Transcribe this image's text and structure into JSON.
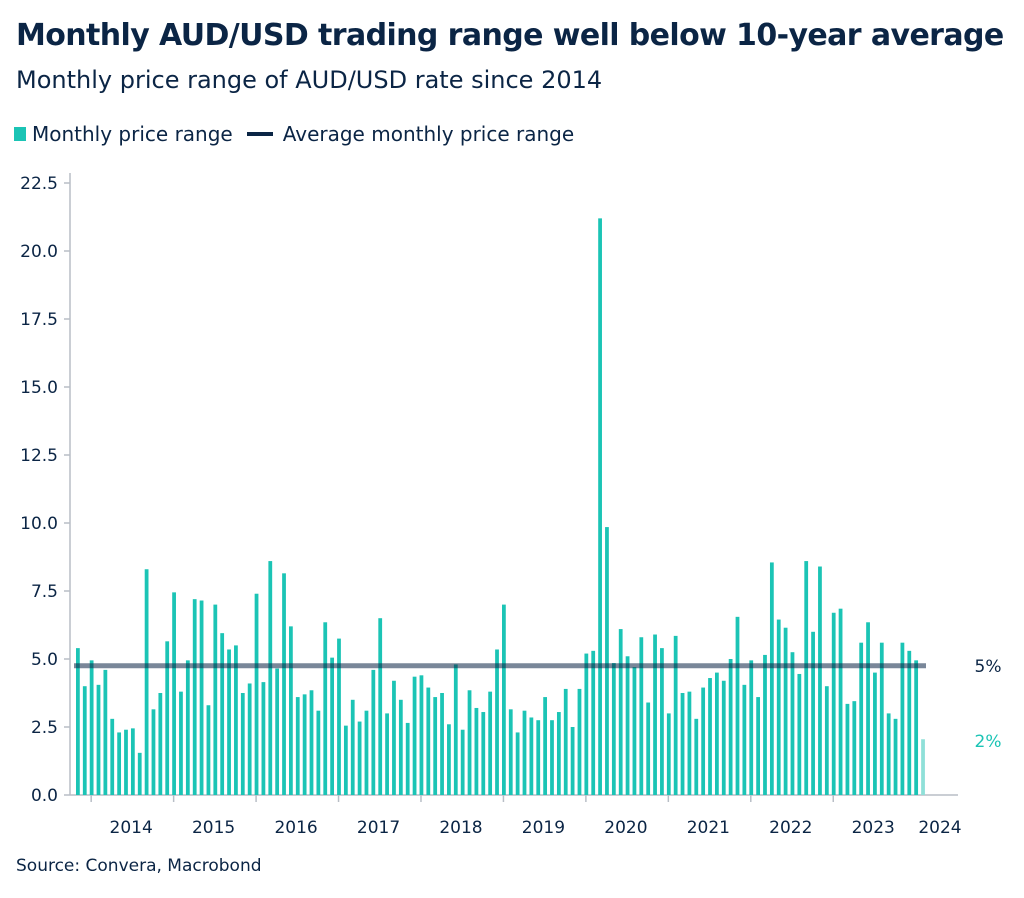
{
  "title": "Monthly AUD/USD trading range well below 10-year average",
  "subtitle": "Monthly price range of AUD/USD rate since 2014",
  "source": "Source: Convera, Macrobond",
  "legend": {
    "series_label": "Monthly price range",
    "average_label": "Average monthly price range"
  },
  "colors": {
    "bar": "#1bc4b5",
    "bar_last": "#8fe0d8",
    "average_line": "#0b2545",
    "text": "#0b2545",
    "axis": "#b8bec6"
  },
  "chart_data": {
    "type": "bar",
    "title": "Monthly AUD/USD trading range well below 10-year average",
    "subtitle": "Monthly price range of AUD/USD rate since 2014",
    "ylim": [
      0,
      22.5
    ],
    "yticks": [
      "0.0",
      "2.5",
      "5.0",
      "7.5",
      "10.0",
      "12.5",
      "15.0",
      "17.5",
      "20.0",
      "22.5"
    ],
    "xtick_labels": [
      "2014",
      "2015",
      "2016",
      "2017",
      "2018",
      "2019",
      "2020",
      "2021",
      "2022",
      "2023",
      "2024"
    ],
    "grid": false,
    "legend_position": "top-left",
    "series": [
      {
        "name": "Monthly price range",
        "values": [
          5.4,
          4.0,
          4.95,
          4.05,
          4.6,
          2.8,
          2.3,
          2.4,
          2.45,
          1.55,
          8.3,
          3.15,
          3.75,
          5.65,
          7.45,
          3.8,
          4.95,
          7.2,
          7.15,
          3.3,
          7.0,
          5.95,
          5.35,
          5.5,
          3.75,
          4.1,
          7.4,
          4.15,
          8.6,
          4.65,
          8.15,
          6.2,
          3.6,
          3.7,
          3.85,
          3.1,
          6.35,
          5.05,
          5.75,
          2.55,
          3.5,
          2.7,
          3.1,
          4.6,
          6.5,
          3.0,
          4.2,
          3.5,
          2.65,
          4.35,
          4.4,
          3.95,
          3.6,
          3.75,
          2.6,
          4.8,
          2.4,
          3.85,
          3.2,
          3.05,
          3.8,
          5.35,
          7.0,
          3.15,
          2.3,
          3.1,
          2.85,
          2.75,
          3.6,
          2.75,
          3.05,
          3.9,
          2.5,
          3.9,
          5.2,
          5.3,
          21.2,
          9.85,
          4.85,
          6.1,
          5.1,
          4.7,
          5.8,
          3.4,
          5.9,
          5.4,
          3.0,
          5.85,
          3.75,
          3.8,
          2.8,
          3.95,
          4.3,
          4.5,
          4.2,
          5.0,
          6.55,
          4.05,
          4.95,
          3.6,
          5.15,
          8.55,
          6.45,
          6.15,
          5.25,
          4.45,
          8.6,
          6.0,
          8.4,
          4.0,
          6.7,
          6.85,
          3.35,
          3.45,
          5.6,
          6.35,
          4.5,
          5.6,
          3.0,
          2.8,
          5.6,
          5.3,
          4.95,
          2.05
        ]
      },
      {
        "name": "Average monthly price range",
        "value": 4.75
      }
    ],
    "end_labels": [
      {
        "text": "5%",
        "color": "#0b2545"
      },
      {
        "text": "2%",
        "color": "#1bc4b5"
      }
    ]
  }
}
